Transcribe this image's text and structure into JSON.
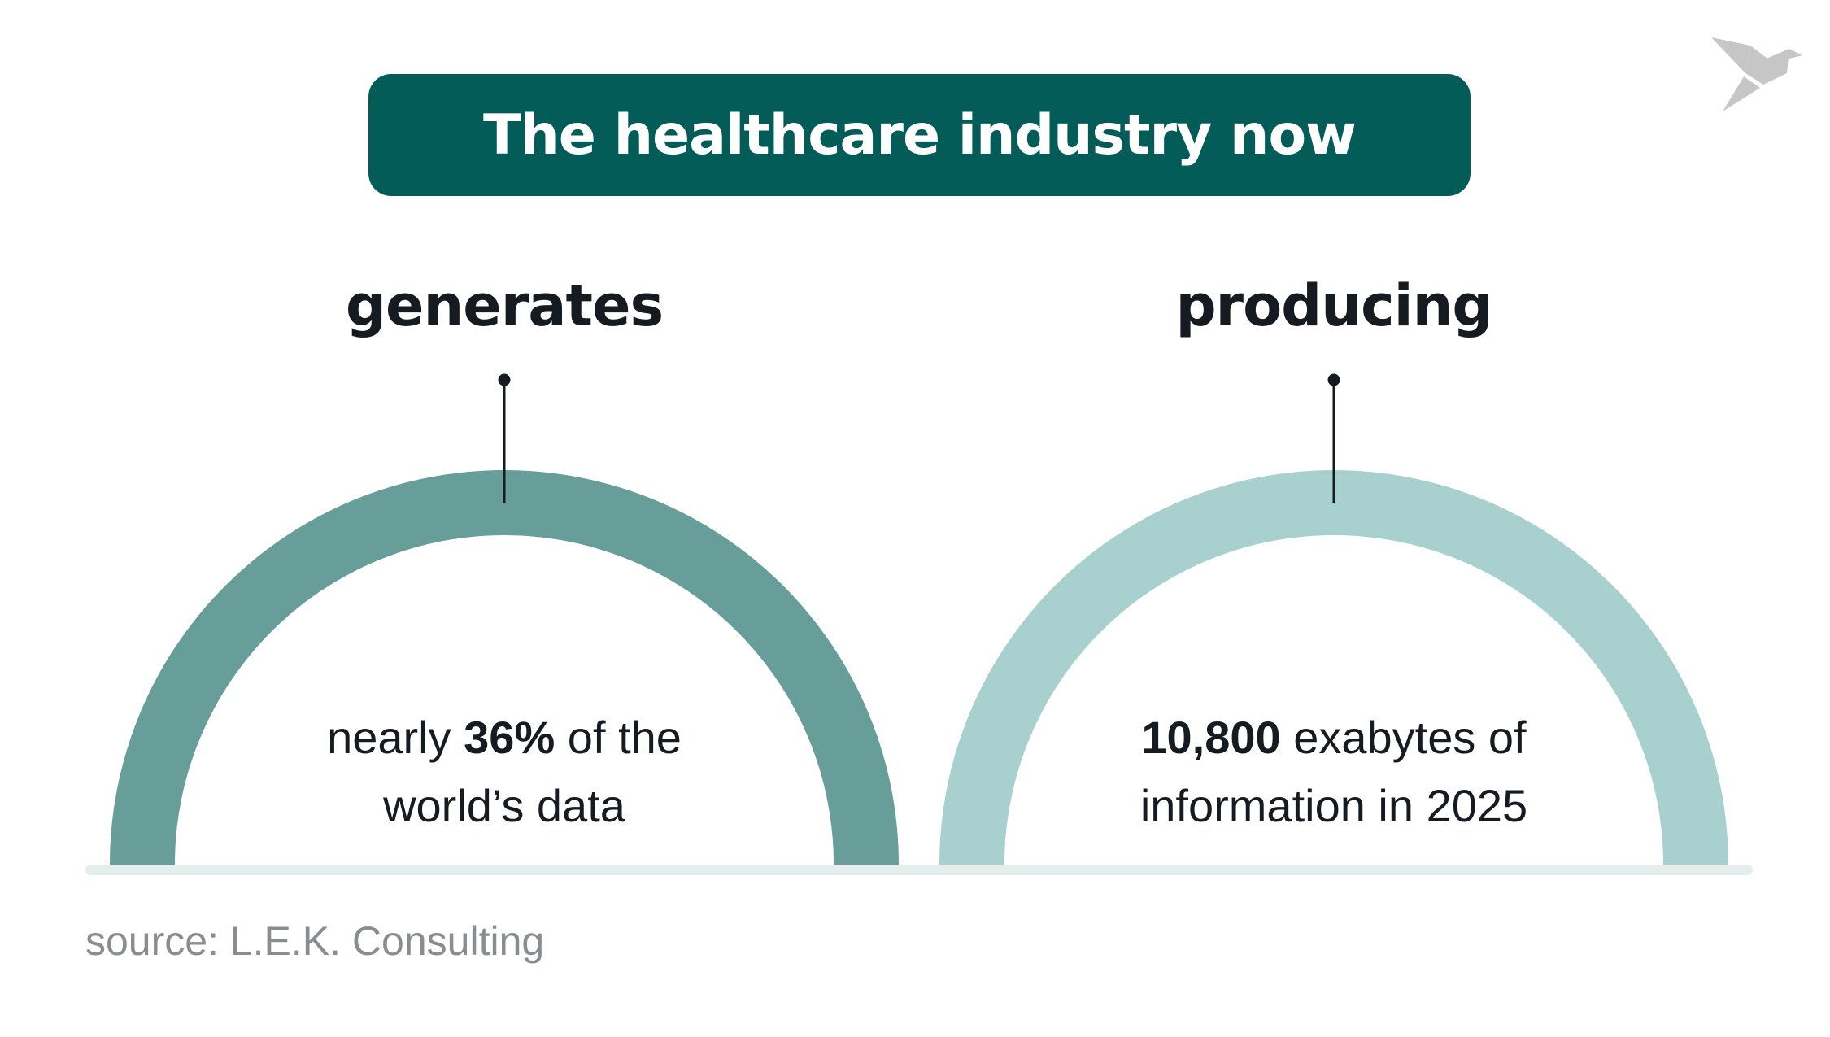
{
  "title": "The healthcare industry now",
  "colors": {
    "title_bg": "#035c58",
    "arc_left": "#689e9a",
    "arc_right": "#a7d0ce",
    "baseline": "#e5eeec",
    "text": "#161b22",
    "source": "#8a8d90",
    "logo": "#c6c6c6"
  },
  "logo_icon": "origami-bird-icon",
  "items": [
    {
      "heading": "generates",
      "pre": "nearly ",
      "bold": "36%",
      "post": " of the",
      "line2": "world’s data"
    },
    {
      "heading": "producing",
      "pre": "",
      "bold": "10,800",
      "post": " exabytes of",
      "line2": "information in 2025"
    }
  ],
  "source": "source: L.E.K. Consulting"
}
